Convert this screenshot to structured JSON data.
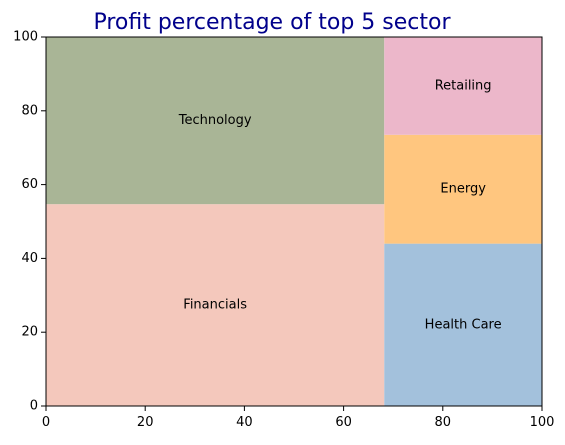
{
  "chart_data": {
    "type": "treemap",
    "title": "Profit percentage of top 5 sector",
    "title_color": "#00008b",
    "xlim": [
      0,
      100
    ],
    "ylim": [
      0,
      100
    ],
    "xticks": [
      0,
      20,
      40,
      60,
      80,
      100
    ],
    "yticks": [
      0,
      20,
      40,
      60,
      80,
      100
    ],
    "grid": false,
    "rectangles": [
      {
        "label": "Financials",
        "x": 0,
        "y": 0,
        "dx": 68.2,
        "dy": 54.7,
        "color": "#f4c8bc"
      },
      {
        "label": "Technology",
        "x": 0,
        "y": 54.7,
        "dx": 68.2,
        "dy": 45.3,
        "color": "#a9b596"
      },
      {
        "label": "Health Care",
        "x": 68.2,
        "y": 0,
        "dx": 31.8,
        "dy": 44.0,
        "color": "#a3c1dc"
      },
      {
        "label": "Energy",
        "x": 68.2,
        "y": 44.0,
        "dx": 31.8,
        "dy": 29.5,
        "color": "#ffc67f"
      },
      {
        "label": "Retailing",
        "x": 68.2,
        "y": 73.5,
        "dx": 31.8,
        "dy": 26.5,
        "color": "#ecb7ca"
      }
    ]
  }
}
